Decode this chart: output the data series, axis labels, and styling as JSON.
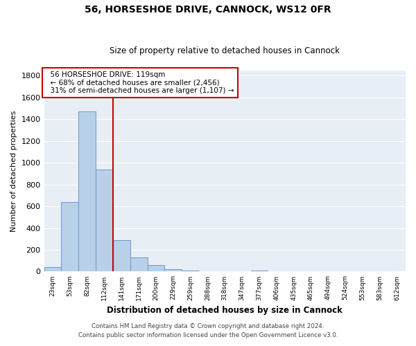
{
  "title_line1": "56, HORSESHOE DRIVE, CANNOCK, WS12 0FR",
  "title_line2": "Size of property relative to detached houses in Cannock",
  "xlabel": "Distribution of detached houses by size in Cannock",
  "ylabel": "Number of detached properties",
  "categories": [
    "23sqm",
    "53sqm",
    "82sqm",
    "112sqm",
    "141sqm",
    "171sqm",
    "200sqm",
    "229sqm",
    "259sqm",
    "288sqm",
    "318sqm",
    "347sqm",
    "377sqm",
    "406sqm",
    "435sqm",
    "465sqm",
    "494sqm",
    "524sqm",
    "553sqm",
    "583sqm",
    "612sqm"
  ],
  "values": [
    40,
    640,
    1470,
    940,
    290,
    130,
    60,
    20,
    10,
    5,
    5,
    5,
    10,
    3,
    0,
    0,
    0,
    0,
    0,
    0,
    0
  ],
  "bar_color": "#b8d0e8",
  "bar_edge_color": "#6699cc",
  "red_line_color": "#cc0000",
  "annotation_text": "  56 HORSESHOE DRIVE: 119sqm\n  ← 68% of detached houses are smaller (2,456)\n  31% of semi-detached houses are larger (1,107) →",
  "annotation_box_color": "#ffffff",
  "annotation_box_edge": "#cc0000",
  "ylim": [
    0,
    1850
  ],
  "yticks": [
    0,
    200,
    400,
    600,
    800,
    1000,
    1200,
    1400,
    1600,
    1800
  ],
  "background_color": "#ffffff",
  "plot_bg_color": "#e8eef5",
  "grid_color": "#ffffff",
  "footer_line1": "Contains HM Land Registry data © Crown copyright and database right 2024.",
  "footer_line2": "Contains public sector information licensed under the Open Government Licence v3.0."
}
